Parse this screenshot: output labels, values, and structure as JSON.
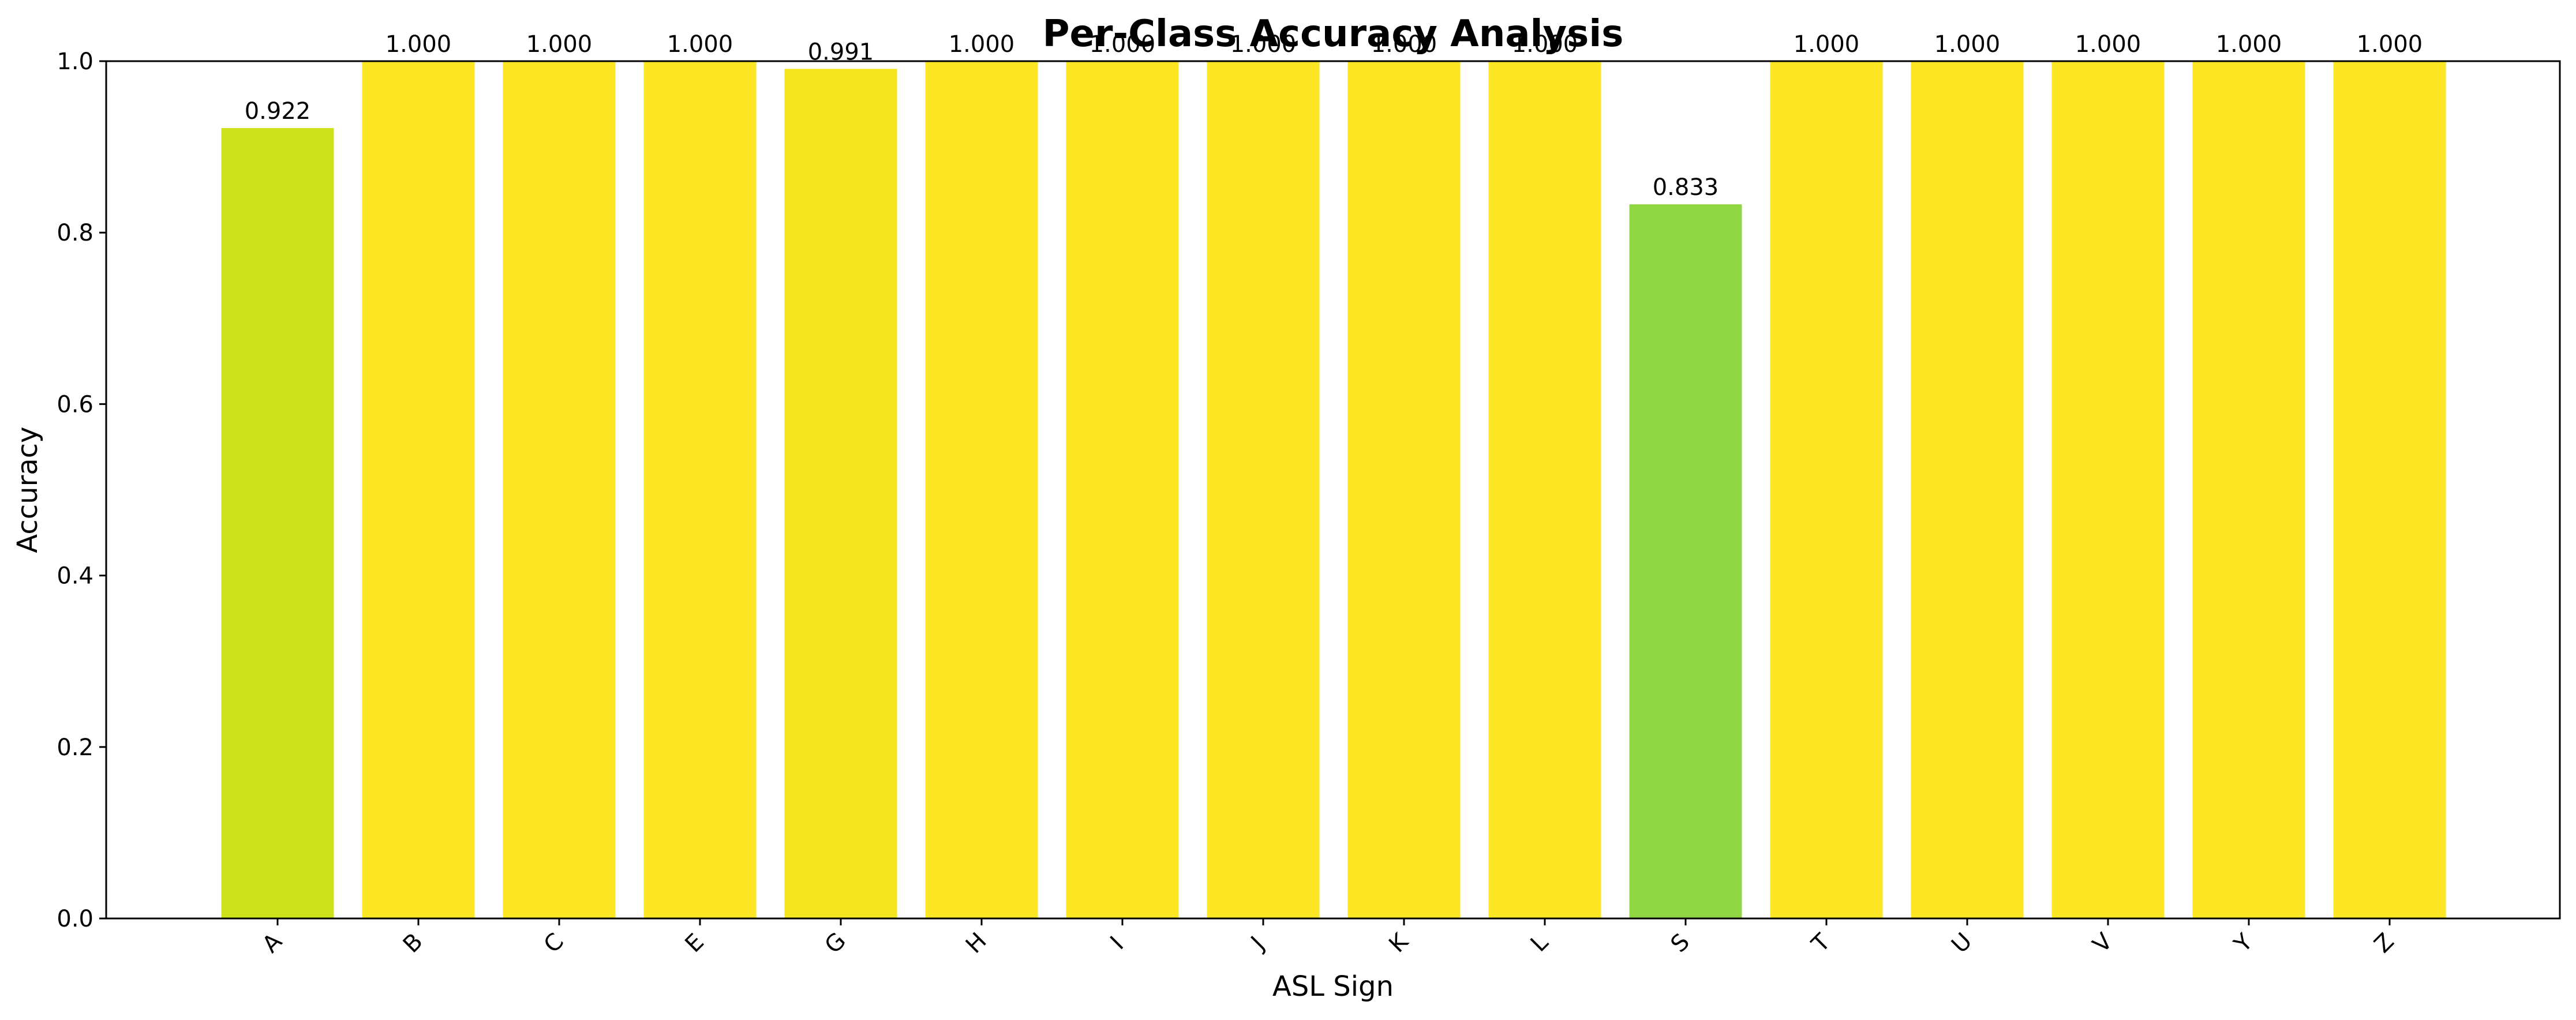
{
  "chart_data": {
    "type": "bar",
    "title": "Per-Class Accuracy Analysis",
    "xlabel": "ASL Sign",
    "ylabel": "Accuracy",
    "ylim": [
      0,
      1.0
    ],
    "yticks": [
      "0.0",
      "0.2",
      "0.4",
      "0.6",
      "0.8",
      "1.0"
    ],
    "grid": false,
    "categories": [
      "A",
      "B",
      "C",
      "E",
      "G",
      "H",
      "I",
      "J",
      "K",
      "L",
      "S",
      "T",
      "U",
      "V",
      "Y",
      "Z"
    ],
    "values": [
      0.922,
      1.0,
      1.0,
      1.0,
      0.991,
      1.0,
      1.0,
      1.0,
      1.0,
      1.0,
      0.833,
      1.0,
      1.0,
      1.0,
      1.0,
      1.0
    ],
    "value_labels": [
      "0.922",
      "1.000",
      "1.000",
      "1.000",
      "0.991",
      "1.000",
      "1.000",
      "1.000",
      "1.000",
      "1.000",
      "0.833",
      "1.000",
      "1.000",
      "1.000",
      "1.000",
      "1.000"
    ],
    "bar_colors": [
      "#cde11d",
      "#fde725",
      "#fde725",
      "#fde725",
      "#f4e61e",
      "#fde725",
      "#fde725",
      "#fde725",
      "#fde725",
      "#fde725",
      "#90d743",
      "#fde725",
      "#fde725",
      "#fde725",
      "#fde725",
      "#fde725"
    ]
  }
}
